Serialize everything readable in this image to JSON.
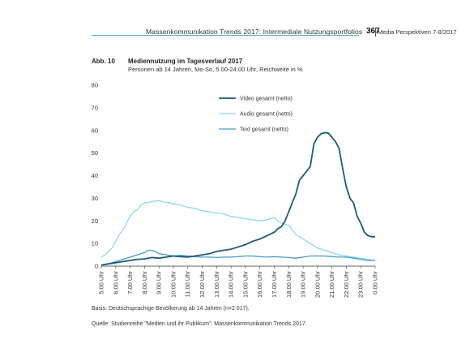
{
  "header": {
    "running_title": "Massenkommunikation Trends 2017: Intermediale Nutzungsportfolios",
    "page_number": "367",
    "journal": "Media Perspektiven  7-8/2017"
  },
  "figure": {
    "label": "Abb. 10",
    "title": "Mediennutzung im Tagesverlauf 2017",
    "subtitle": "Personen ab 14 Jahren, Mo-So, 5.00-24.00 Uhr, Reichweite in %"
  },
  "footnotes": {
    "basis": "Basis: Deutschsprachige Bevölkerung ab 14 Jahren (n=2 017).",
    "source": "Quelle: Studienreihe \"Medien und ihr Publikum\": Massenkommunikation Trends 2017."
  },
  "colors": {
    "video": "#1b5b78",
    "audio": "#8fd6ee",
    "text": "#4a9cc4",
    "axis": "#333333",
    "header_rule": "#5aa9c8"
  },
  "chart_data": {
    "type": "line",
    "title": "Mediennutzung im Tagesverlauf 2017",
    "xlabel": "",
    "ylabel": "",
    "ylim": [
      0,
      80
    ],
    "yticks": [
      0,
      10,
      20,
      30,
      40,
      50,
      60,
      70,
      80
    ],
    "xlim": [
      5.0,
      24.0
    ],
    "xtick_values": [
      5,
      6,
      7,
      8,
      9,
      10,
      11,
      12,
      13,
      14,
      15,
      16,
      17,
      18,
      19,
      20,
      21,
      22,
      23,
      24
    ],
    "xtick_labels": [
      "5.00 Uhr",
      "6.00 Uhr",
      "7.00 Uhr",
      "8.00 Uhr",
      "9.00 Uhr",
      "10.00 Uhr",
      "11.00 Uhr",
      "12.00 Uhr",
      "13.00 Uhr",
      "14.00 Uhr",
      "15.00 Uhr",
      "16.00 Uhr",
      "17.00 Uhr",
      "18.00 Uhr",
      "19.00 Uhr",
      "20.00 Uhr",
      "21.00 Uhr",
      "22.00 Uhr",
      "23.00 Uhr",
      "0.00 Uhr"
    ],
    "grid": false,
    "legend_position": "top-right",
    "series": [
      {
        "name": "Video gesamt (netto)",
        "color_key": "video",
        "x": [
          5.0,
          5.5,
          6.0,
          6.5,
          7.0,
          7.5,
          8.0,
          8.5,
          9.0,
          9.5,
          10.0,
          10.5,
          11.0,
          11.5,
          12.0,
          12.5,
          13.0,
          13.5,
          14.0,
          14.5,
          15.0,
          15.5,
          16.0,
          16.5,
          17.0,
          17.25,
          17.5,
          17.75,
          18.0,
          18.25,
          18.5,
          18.75,
          19.0,
          19.25,
          19.5,
          19.75,
          20.0,
          20.25,
          20.5,
          20.75,
          21.0,
          21.25,
          21.5,
          21.75,
          22.0,
          22.25,
          22.5,
          22.75,
          23.0,
          23.25,
          23.5,
          23.75,
          24.0
        ],
        "values": [
          0.5,
          1.0,
          1.5,
          2.0,
          2.5,
          3.0,
          3.2,
          3.8,
          3.5,
          4.0,
          4.5,
          4.2,
          4.0,
          4.5,
          5.0,
          5.5,
          6.5,
          7.0,
          7.5,
          8.5,
          9.5,
          11.0,
          12.0,
          13.5,
          15.0,
          16.5,
          17.5,
          20.0,
          24.0,
          28.0,
          32.0,
          38.0,
          40.0,
          42.0,
          44.0,
          54.0,
          57.0,
          58.5,
          59.0,
          58.8,
          57.0,
          55.0,
          52.0,
          43.0,
          35.0,
          30.0,
          28.0,
          22.0,
          19.0,
          15.0,
          13.5,
          13.0,
          13.0
        ]
      },
      {
        "name": "Audio gesamt (netto)",
        "color_key": "audio",
        "x": [
          5.0,
          5.25,
          5.5,
          5.75,
          6.0,
          6.25,
          6.5,
          6.75,
          7.0,
          7.25,
          7.5,
          7.75,
          8.0,
          8.25,
          8.5,
          8.75,
          9.0,
          9.25,
          9.5,
          9.75,
          10.0,
          10.5,
          11.0,
          11.5,
          12.0,
          12.5,
          13.0,
          13.5,
          14.0,
          14.5,
          15.0,
          15.5,
          16.0,
          16.5,
          17.0,
          17.25,
          17.5,
          17.75,
          18.0,
          18.25,
          18.5,
          19.0,
          19.5,
          20.0,
          20.5,
          21.0,
          21.5,
          22.0,
          22.5,
          23.0,
          23.5,
          24.0
        ],
        "values": [
          4.0,
          5.0,
          6.5,
          8.0,
          11.0,
          14.0,
          16.0,
          19.0,
          22.0,
          24.0,
          25.0,
          27.0,
          28.0,
          28.2,
          28.5,
          28.8,
          29.0,
          28.5,
          28.2,
          28.0,
          27.5,
          27.0,
          26.0,
          25.5,
          24.5,
          24.0,
          23.5,
          23.0,
          22.0,
          21.5,
          21.0,
          20.5,
          20.0,
          20.5,
          21.5,
          20.0,
          19.0,
          18.5,
          18.0,
          16.0,
          14.0,
          12.0,
          10.0,
          8.0,
          7.0,
          6.0,
          5.0,
          4.5,
          4.0,
          3.5,
          3.0,
          2.5
        ]
      },
      {
        "name": "Text gesamt (netto)",
        "color_key": "text",
        "x": [
          5.0,
          5.5,
          6.0,
          6.5,
          7.0,
          7.5,
          8.0,
          8.25,
          8.5,
          8.75,
          9.0,
          9.5,
          10.0,
          10.5,
          11.0,
          11.5,
          12.0,
          12.5,
          13.0,
          13.5,
          14.0,
          14.5,
          15.0,
          15.5,
          16.0,
          16.5,
          17.0,
          17.5,
          18.0,
          18.5,
          19.0,
          19.5,
          20.0,
          20.5,
          21.0,
          21.5,
          22.0,
          22.5,
          23.0,
          23.5,
          24.0
        ],
        "values": [
          0.5,
          1.0,
          2.0,
          3.0,
          4.0,
          5.0,
          6.0,
          7.0,
          7.0,
          6.5,
          5.5,
          5.0,
          4.5,
          4.8,
          4.5,
          4.2,
          4.0,
          4.0,
          3.8,
          4.0,
          4.0,
          4.2,
          4.5,
          4.5,
          4.2,
          4.0,
          4.2,
          4.0,
          3.8,
          3.5,
          4.0,
          4.5,
          4.5,
          4.5,
          4.2,
          4.0,
          4.0,
          3.5,
          3.0,
          2.5,
          2.5
        ]
      }
    ]
  }
}
